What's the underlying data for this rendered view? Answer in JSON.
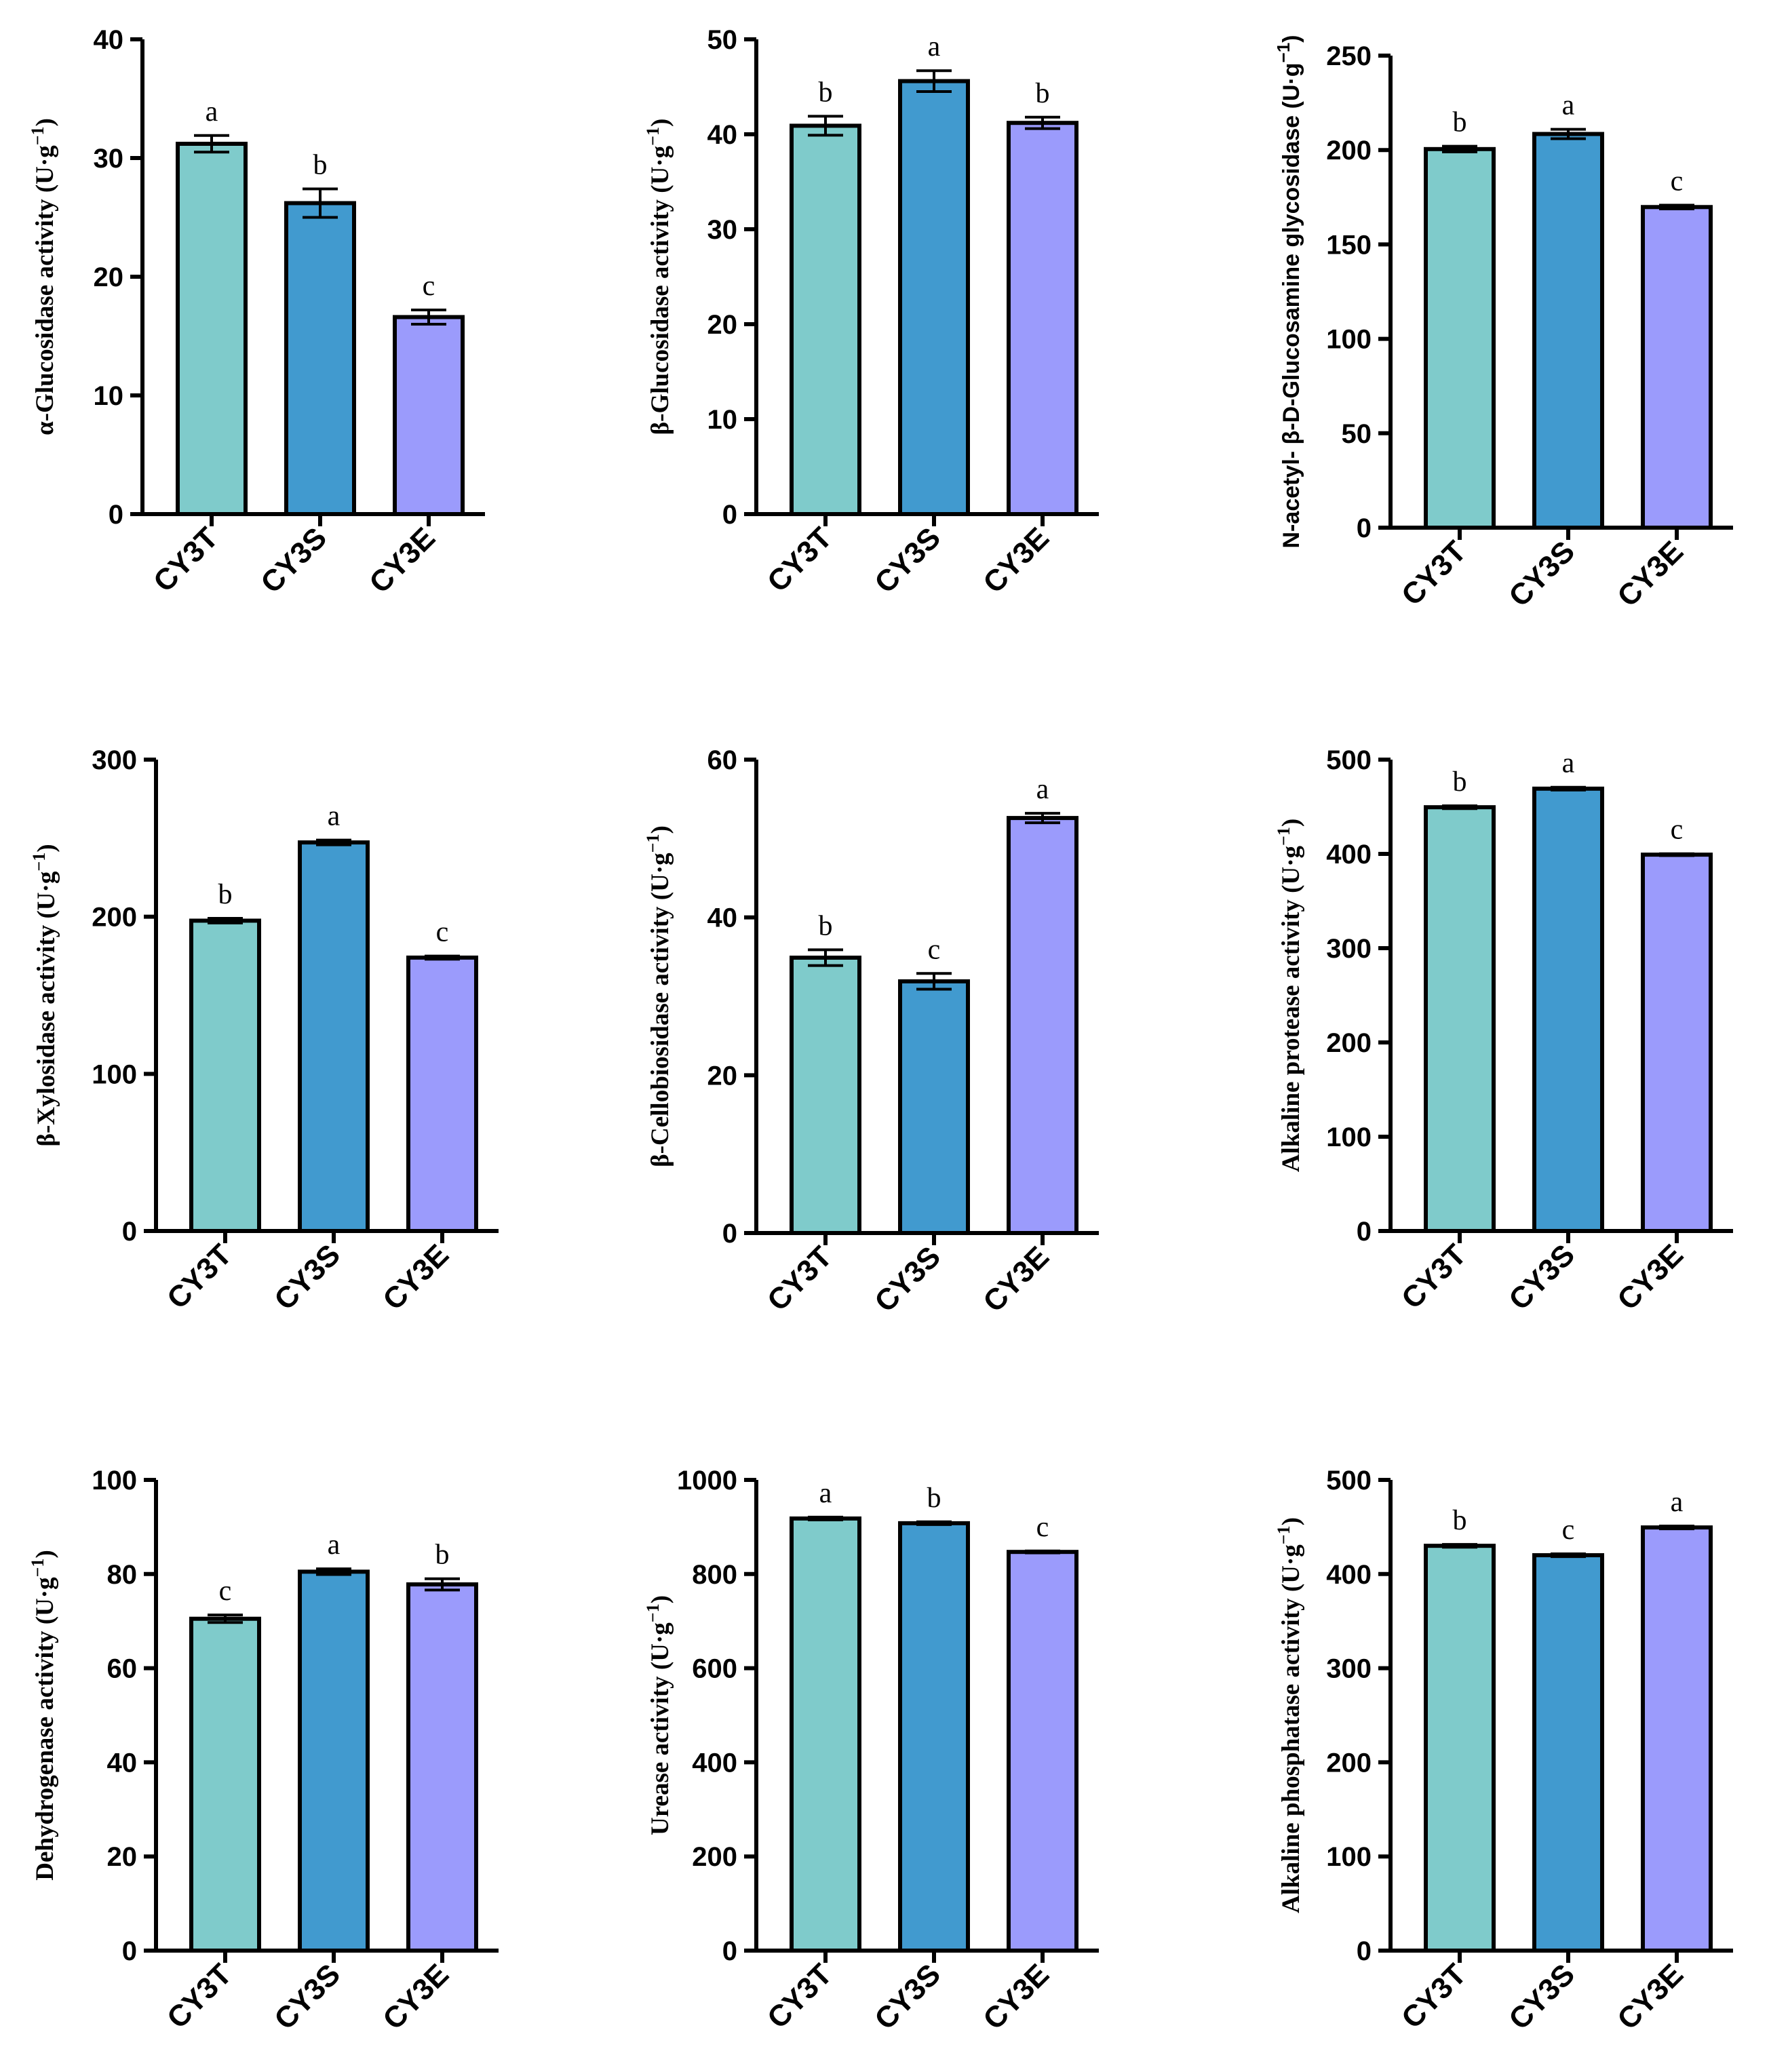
{
  "colors": {
    "CY3T": "#7fcbcb",
    "CY3S": "#419acf",
    "CY3E": "#9b9bfc"
  },
  "chart_data": [
    {
      "type": "bar",
      "categories": [
        "CY3T",
        "CY3S",
        "CY3E"
      ],
      "values": [
        31.2,
        26.2,
        16.6
      ],
      "errors": [
        0.7,
        1.2,
        0.6
      ],
      "letters": [
        "a",
        "b",
        "c"
      ],
      "ylim": [
        0,
        40
      ],
      "ticks": [
        0,
        10,
        20,
        30,
        40
      ],
      "ylabel_main": "α-Glucosidase activity (U·g",
      "ylabel_sup": "−1",
      "ylabel_end": ")"
    },
    {
      "type": "bar",
      "categories": [
        "CY3T",
        "CY3S",
        "CY3E"
      ],
      "values": [
        40.9,
        45.6,
        41.2
      ],
      "errors": [
        1.0,
        1.1,
        0.6
      ],
      "letters": [
        "b",
        "a",
        "b"
      ],
      "ylim": [
        0,
        50
      ],
      "ticks": [
        0,
        10,
        20,
        30,
        40,
        50
      ],
      "ylabel_main": "β-Glucosidase activity (U·g",
      "ylabel_sup": "−1",
      "ylabel_end": ")"
    },
    {
      "type": "bar",
      "categories": [
        "CY3T",
        "CY3S",
        "CY3E"
      ],
      "values": [
        200.5,
        208.5,
        169.8
      ],
      "errors": [
        1.5,
        2.5,
        1.0
      ],
      "letters": [
        "b",
        "a",
        "c"
      ],
      "ylim": [
        0,
        250
      ],
      "ticks": [
        0,
        50,
        100,
        150,
        200,
        250
      ],
      "ylabel_main": "N-acetyl- β-D-Glucosamine glycosidase (U·g",
      "ylabel_sup": "−1",
      "ylabel_end": ")"
    },
    {
      "type": "bar",
      "categories": [
        "CY3T",
        "CY3S",
        "CY3E"
      ],
      "values": [
        197.5,
        247.3,
        174.0
      ],
      "errors": [
        1.5,
        1.5,
        1.0
      ],
      "letters": [
        "b",
        "a",
        "c"
      ],
      "ylim": [
        0,
        300
      ],
      "ticks": [
        0,
        100,
        200,
        300
      ],
      "ylabel_main": "β-Xylosidase activity (U·g",
      "ylabel_sup": "−1",
      "ylabel_end": ")"
    },
    {
      "type": "bar",
      "categories": [
        "CY3T",
        "CY3S",
        "CY3E"
      ],
      "values": [
        34.9,
        31.9,
        52.6
      ],
      "errors": [
        1.0,
        1.0,
        0.6
      ],
      "letters": [
        "b",
        "c",
        "a"
      ],
      "ylim": [
        0,
        60
      ],
      "ticks": [
        0,
        20,
        40,
        60
      ],
      "ylabel_main": "β-Cellobiosidase activity (U·g",
      "ylabel_sup": "−1",
      "ylabel_end": ")"
    },
    {
      "type": "bar",
      "categories": [
        "CY3T",
        "CY3S",
        "CY3E"
      ],
      "values": [
        449.5,
        469.2,
        399.2
      ],
      "errors": [
        1.5,
        1.5,
        1.0
      ],
      "letters": [
        "b",
        "a",
        "c"
      ],
      "ylim": [
        0,
        500
      ],
      "ticks": [
        0,
        100,
        200,
        300,
        400,
        500
      ],
      "ylabel_main": "Alkaline protease activity (U·g",
      "ylabel_sup": "−1",
      "ylabel_end": ")"
    },
    {
      "type": "bar",
      "categories": [
        "CY3T",
        "CY3S",
        "CY3E"
      ],
      "values": [
        70.5,
        80.5,
        77.8
      ],
      "errors": [
        0.8,
        0.6,
        1.2
      ],
      "letters": [
        "c",
        "a",
        "b"
      ],
      "ylim": [
        0,
        100
      ],
      "ticks": [
        0,
        20,
        40,
        60,
        80,
        100
      ],
      "ylabel_main": "Dehydrogenase activity (U·g",
      "ylabel_sup": "−1",
      "ylabel_end": ")"
    },
    {
      "type": "bar",
      "categories": [
        "CY3T",
        "CY3S",
        "CY3E"
      ],
      "values": [
        918.0,
        908.0,
        847.0
      ],
      "errors": [
        3.0,
        3.0,
        2.0
      ],
      "letters": [
        "a",
        "b",
        "c"
      ],
      "ylim": [
        0,
        1000
      ],
      "ticks": [
        0,
        200,
        400,
        600,
        800,
        1000
      ],
      "ylabel_main": "Urease activity (U·g",
      "ylabel_sup": "−1",
      "ylabel_end": ")"
    },
    {
      "type": "bar",
      "categories": [
        "CY3T",
        "CY3S",
        "CY3E"
      ],
      "values": [
        430.0,
        420.0,
        449.5
      ],
      "errors": [
        1.5,
        1.5,
        1.5
      ],
      "letters": [
        "b",
        "c",
        "a"
      ],
      "ylim": [
        0,
        500
      ],
      "ticks": [
        0,
        100,
        200,
        300,
        400,
        500
      ],
      "ylabel_main": "Alkaline phosphatase activity (U·g",
      "ylabel_sup": "−1",
      "ylabel_end": ")"
    }
  ]
}
